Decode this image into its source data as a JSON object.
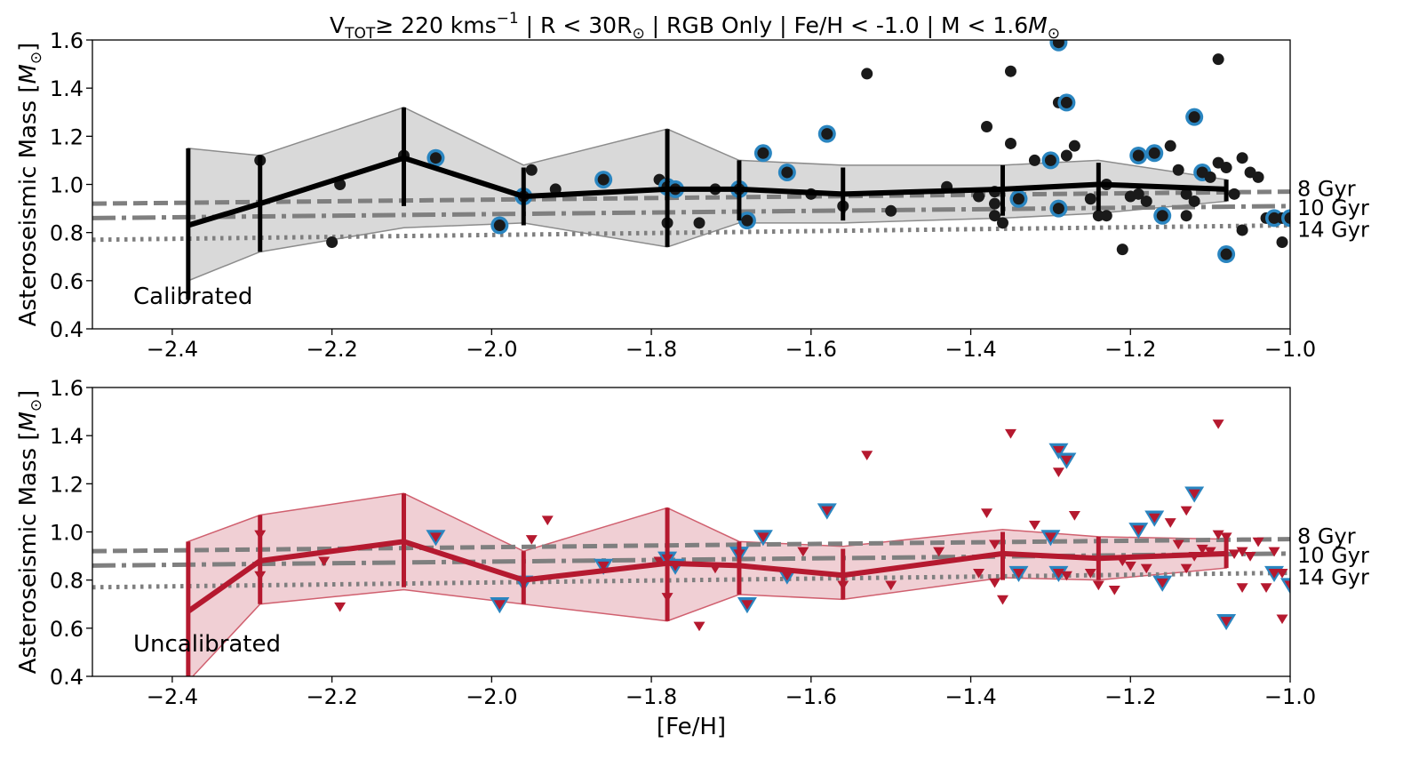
{
  "figure": {
    "title_main": "V",
    "title_sub": "TOT",
    "title_rest": "≥  220 kms",
    "title_sup": "−1",
    "title_tail": "  | R < 30R",
    "title_sun1": "⊙",
    "title_tail2": " | RGB Only | Fe/H < -1.0 | M < 1.6",
    "title_m": "M",
    "title_sun2": "⊙",
    "xlabel": "[Fe/H]"
  },
  "chart_data": [
    {
      "type": "scatter",
      "name": "calibrated",
      "annotation": "Calibrated",
      "ylabel_main": "Asteroseismic Mass [",
      "ylabel_m": "M",
      "ylabel_sun": "⊙",
      "ylabel_close": "]",
      "xlim": [
        -2.5,
        -1.0
      ],
      "ylim": [
        0.4,
        1.6
      ],
      "xticks": [
        -2.4,
        -2.2,
        -2.0,
        -1.8,
        -1.6,
        -1.4,
        -1.2,
        -1.0
      ],
      "xtick_labels": [
        "−2.4",
        "−2.2",
        "−2.0",
        "−1.8",
        "−1.6",
        "−1.4",
        "−1.2",
        "−1.0"
      ],
      "yticks": [
        0.4,
        0.6,
        0.8,
        1.0,
        1.2,
        1.4,
        1.6
      ],
      "ytick_labels": [
        "0.4",
        "0.6",
        "0.8",
        "1.0",
        "1.2",
        "1.4",
        "1.6"
      ],
      "colors": {
        "line": "#000000",
        "fill": "#d9d9d9",
        "fill_edge": "#8c8c8c",
        "points": "#1a1a1a",
        "highlight": "#2a85c0",
        "ref": "#7f7f7f"
      },
      "isochrones": [
        {
          "label": "8 Gyr",
          "style": "dashed",
          "y": [
            0.92,
            0.97
          ]
        },
        {
          "label": "10 Gyr",
          "style": "dashdot",
          "y": [
            0.86,
            0.91
          ]
        },
        {
          "label": "14 Gyr",
          "style": "dotted",
          "y": [
            0.77,
            0.83
          ]
        }
      ],
      "trend": {
        "x": [
          -2.38,
          -2.29,
          -2.11,
          -1.96,
          -1.78,
          -1.69,
          -1.56,
          -1.36,
          -1.24,
          -1.08
        ],
        "y": [
          0.83,
          0.92,
          1.11,
          0.95,
          0.98,
          0.98,
          0.96,
          0.98,
          1.0,
          0.98
        ],
        "err_lo": [
          0.52,
          0.72,
          0.91,
          0.83,
          0.74,
          0.85,
          0.85,
          0.87,
          0.89,
          0.93
        ],
        "err_hi": [
          1.15,
          1.12,
          1.32,
          1.07,
          1.23,
          1.1,
          1.07,
          1.08,
          1.09,
          1.02
        ],
        "band_lo": [
          0.6,
          0.72,
          0.82,
          0.84,
          0.74,
          0.84,
          0.84,
          0.86,
          0.88,
          0.93
        ],
        "band_hi": [
          1.15,
          1.12,
          1.32,
          1.08,
          1.23,
          1.1,
          1.08,
          1.08,
          1.1,
          1.02
        ]
      },
      "points": [
        [
          -2.29,
          1.1,
          0
        ],
        [
          -2.2,
          0.76,
          0
        ],
        [
          -2.19,
          1.0,
          0
        ],
        [
          -2.11,
          1.12,
          0
        ],
        [
          -2.07,
          1.11,
          1
        ],
        [
          -1.99,
          0.83,
          1
        ],
        [
          -1.96,
          0.95,
          1
        ],
        [
          -1.95,
          1.06,
          0
        ],
        [
          -1.92,
          0.98,
          0
        ],
        [
          -1.86,
          1.02,
          1
        ],
        [
          -1.79,
          1.02,
          0
        ],
        [
          -1.78,
          0.84,
          0
        ],
        [
          -1.78,
          0.99,
          1
        ],
        [
          -1.77,
          0.98,
          1
        ],
        [
          -1.74,
          0.84,
          0
        ],
        [
          -1.72,
          0.98,
          0
        ],
        [
          -1.69,
          0.98,
          1
        ],
        [
          -1.68,
          0.85,
          1
        ],
        [
          -1.66,
          1.13,
          1
        ],
        [
          -1.63,
          1.05,
          1
        ],
        [
          -1.6,
          0.96,
          0
        ],
        [
          -1.58,
          1.21,
          1
        ],
        [
          -1.56,
          0.91,
          0
        ],
        [
          -1.53,
          1.46,
          0
        ],
        [
          -1.5,
          0.89,
          0
        ],
        [
          -1.43,
          0.99,
          0
        ],
        [
          -1.39,
          0.95,
          0
        ],
        [
          -1.38,
          1.24,
          0
        ],
        [
          -1.37,
          0.92,
          0
        ],
        [
          -1.37,
          0.97,
          0
        ],
        [
          -1.37,
          0.87,
          0
        ],
        [
          -1.36,
          0.84,
          0
        ],
        [
          -1.35,
          1.47,
          0
        ],
        [
          -1.35,
          1.17,
          0
        ],
        [
          -1.34,
          0.94,
          1
        ],
        [
          -1.32,
          1.1,
          0
        ],
        [
          -1.3,
          1.1,
          1
        ],
        [
          -1.29,
          1.59,
          1
        ],
        [
          -1.29,
          1.34,
          0
        ],
        [
          -1.29,
          0.9,
          1
        ],
        [
          -1.28,
          1.34,
          1
        ],
        [
          -1.28,
          1.12,
          0
        ],
        [
          -1.27,
          1.16,
          0
        ],
        [
          -1.25,
          0.94,
          0
        ],
        [
          -1.24,
          0.87,
          0
        ],
        [
          -1.23,
          0.87,
          0
        ],
        [
          -1.23,
          1.0,
          0
        ],
        [
          -1.21,
          0.73,
          0
        ],
        [
          -1.2,
          0.95,
          0
        ],
        [
          -1.19,
          0.96,
          0
        ],
        [
          -1.19,
          1.12,
          1
        ],
        [
          -1.18,
          0.93,
          0
        ],
        [
          -1.17,
          1.13,
          1
        ],
        [
          -1.16,
          0.87,
          1
        ],
        [
          -1.15,
          1.16,
          0
        ],
        [
          -1.14,
          1.06,
          0
        ],
        [
          -1.13,
          0.96,
          0
        ],
        [
          -1.13,
          0.87,
          0
        ],
        [
          -1.12,
          0.93,
          0
        ],
        [
          -1.12,
          1.28,
          1
        ],
        [
          -1.11,
          1.05,
          1
        ],
        [
          -1.1,
          1.03,
          0
        ],
        [
          -1.09,
          1.52,
          0
        ],
        [
          -1.09,
          1.09,
          0
        ],
        [
          -1.08,
          0.71,
          1
        ],
        [
          -1.08,
          1.07,
          0
        ],
        [
          -1.07,
          0.96,
          0
        ],
        [
          -1.06,
          0.81,
          0
        ],
        [
          -1.06,
          1.11,
          0
        ],
        [
          -1.05,
          1.05,
          0
        ],
        [
          -1.04,
          1.03,
          0
        ],
        [
          -1.03,
          0.86,
          0
        ],
        [
          -1.02,
          0.86,
          0
        ],
        [
          -1.02,
          0.86,
          1
        ],
        [
          -1.01,
          0.76,
          0
        ],
        [
          -1.01,
          0.86,
          0
        ],
        [
          -1.0,
          0.86,
          1
        ]
      ]
    },
    {
      "type": "scatter",
      "name": "uncalibrated",
      "annotation": "Uncalibrated",
      "ylabel_main": "Asteroseismic Mass [",
      "ylabel_m": "M",
      "ylabel_sun": "⊙",
      "ylabel_close": "]",
      "xlim": [
        -2.5,
        -1.0
      ],
      "ylim": [
        0.4,
        1.6
      ],
      "xticks": [
        -2.4,
        -2.2,
        -2.0,
        -1.8,
        -1.6,
        -1.4,
        -1.2,
        -1.0
      ],
      "xtick_labels": [
        "−2.4",
        "−2.2",
        "−2.0",
        "−1.8",
        "−1.6",
        "−1.4",
        "−1.2",
        "−1.0"
      ],
      "yticks": [
        0.4,
        0.6,
        0.8,
        1.0,
        1.2,
        1.4,
        1.6
      ],
      "ytick_labels": [
        "0.4",
        "0.6",
        "0.8",
        "1.0",
        "1.2",
        "1.4",
        "1.6"
      ],
      "colors": {
        "line": "#b5192f",
        "fill": "#f0cfd4",
        "fill_edge": "#d0606f",
        "points": "#b5192f",
        "highlight": "#2a85c0",
        "ref": "#7f7f7f"
      },
      "isochrones": [
        {
          "label": "8 Gyr",
          "style": "dashed",
          "y": [
            0.92,
            0.97
          ]
        },
        {
          "label": "10 Gyr",
          "style": "dashdot",
          "y": [
            0.86,
            0.91
          ]
        },
        {
          "label": "14 Gyr",
          "style": "dotted",
          "y": [
            0.77,
            0.83
          ]
        }
      ],
      "trend": {
        "x": [
          -2.38,
          -2.29,
          -2.11,
          -1.96,
          -1.78,
          -1.69,
          -1.56,
          -1.36,
          -1.24,
          -1.08
        ],
        "y": [
          0.67,
          0.88,
          0.96,
          0.8,
          0.87,
          0.86,
          0.82,
          0.91,
          0.89,
          0.91
        ],
        "err_lo": [
          0.38,
          0.7,
          0.77,
          0.7,
          0.63,
          0.74,
          0.72,
          0.8,
          0.8,
          0.85
        ],
        "err_hi": [
          0.96,
          1.07,
          1.16,
          0.92,
          1.1,
          0.96,
          0.93,
          1.0,
          0.98,
          0.97
        ],
        "band_lo": [
          0.38,
          0.7,
          0.76,
          0.7,
          0.63,
          0.74,
          0.72,
          0.81,
          0.8,
          0.85
        ],
        "band_hi": [
          0.96,
          1.07,
          1.16,
          0.92,
          1.1,
          0.96,
          0.94,
          1.01,
          0.98,
          0.97
        ]
      },
      "points": [
        [
          -2.29,
          0.99,
          0
        ],
        [
          -2.29,
          0.82,
          0
        ],
        [
          -2.21,
          0.88,
          0
        ],
        [
          -2.19,
          0.69,
          0
        ],
        [
          -2.07,
          0.98,
          1
        ],
        [
          -1.99,
          0.7,
          1
        ],
        [
          -1.96,
          0.79,
          1
        ],
        [
          -1.95,
          0.97,
          0
        ],
        [
          -1.93,
          1.05,
          0
        ],
        [
          -1.86,
          0.86,
          1
        ],
        [
          -1.79,
          0.88,
          0
        ],
        [
          -1.78,
          0.73,
          0
        ],
        [
          -1.78,
          0.89,
          1
        ],
        [
          -1.77,
          0.86,
          1
        ],
        [
          -1.74,
          0.61,
          0
        ],
        [
          -1.72,
          0.85,
          0
        ],
        [
          -1.69,
          0.91,
          1
        ],
        [
          -1.68,
          0.7,
          1
        ],
        [
          -1.66,
          0.98,
          1
        ],
        [
          -1.63,
          0.82,
          1
        ],
        [
          -1.61,
          0.92,
          0
        ],
        [
          -1.58,
          1.09,
          1
        ],
        [
          -1.56,
          0.78,
          0
        ],
        [
          -1.53,
          1.32,
          0
        ],
        [
          -1.5,
          0.78,
          0
        ],
        [
          -1.44,
          0.92,
          0
        ],
        [
          -1.39,
          0.83,
          0
        ],
        [
          -1.38,
          1.08,
          0
        ],
        [
          -1.37,
          0.95,
          0
        ],
        [
          -1.37,
          0.79,
          0
        ],
        [
          -1.36,
          0.72,
          0
        ],
        [
          -1.35,
          1.41,
          0
        ],
        [
          -1.34,
          0.83,
          1
        ],
        [
          -1.32,
          1.03,
          0
        ],
        [
          -1.3,
          0.98,
          1
        ],
        [
          -1.29,
          1.34,
          1
        ],
        [
          -1.29,
          1.25,
          0
        ],
        [
          -1.29,
          0.83,
          1
        ],
        [
          -1.28,
          1.3,
          1
        ],
        [
          -1.28,
          0.82,
          0
        ],
        [
          -1.27,
          1.07,
          0
        ],
        [
          -1.25,
          0.83,
          0
        ],
        [
          -1.24,
          0.78,
          0
        ],
        [
          -1.22,
          0.76,
          0
        ],
        [
          -1.21,
          0.88,
          0
        ],
        [
          -1.2,
          0.86,
          0
        ],
        [
          -1.19,
          1.01,
          1
        ],
        [
          -1.18,
          0.85,
          0
        ],
        [
          -1.17,
          1.06,
          1
        ],
        [
          -1.16,
          0.79,
          1
        ],
        [
          -1.15,
          1.04,
          0
        ],
        [
          -1.14,
          0.95,
          0
        ],
        [
          -1.13,
          1.09,
          0
        ],
        [
          -1.13,
          0.85,
          0
        ],
        [
          -1.12,
          0.9,
          0
        ],
        [
          -1.12,
          1.16,
          1
        ],
        [
          -1.11,
          0.93,
          0
        ],
        [
          -1.1,
          0.92,
          0
        ],
        [
          -1.09,
          1.45,
          0
        ],
        [
          -1.09,
          0.99,
          0
        ],
        [
          -1.08,
          0.63,
          1
        ],
        [
          -1.08,
          0.98,
          0
        ],
        [
          -1.07,
          0.91,
          0
        ],
        [
          -1.06,
          0.77,
          0
        ],
        [
          -1.06,
          0.92,
          0
        ],
        [
          -1.05,
          0.9,
          0
        ],
        [
          -1.04,
          0.96,
          0
        ],
        [
          -1.03,
          0.77,
          0
        ],
        [
          -1.02,
          0.83,
          1
        ],
        [
          -1.02,
          0.92,
          0
        ],
        [
          -1.01,
          0.64,
          0
        ],
        [
          -1.01,
          0.83,
          0
        ],
        [
          -1.0,
          0.78,
          1
        ]
      ]
    }
  ]
}
